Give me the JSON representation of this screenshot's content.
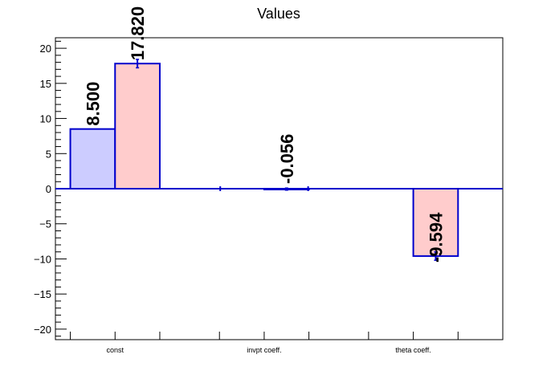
{
  "chart_data": {
    "type": "bar",
    "title": "Values",
    "xlabel": "",
    "ylabel": "",
    "categories": [
      "const",
      "invpt coeff.",
      "theta coeff."
    ],
    "series": [
      {
        "values": [
          8.5,
          0,
          0
        ],
        "color": "#ccccff"
      },
      {
        "values": [
          17.82,
          -0.056,
          -9.594
        ],
        "errors": [
          0.6,
          0.15,
          0.6
        ],
        "color": "#ffcccc"
      }
    ],
    "data_labels": [
      "8.500",
      "17.820",
      "-0.056",
      "-9.594"
    ],
    "ylim": [
      -21.5,
      21.5
    ],
    "yticks": [
      -20,
      -15,
      -10,
      -5,
      0,
      5,
      10,
      15,
      20
    ],
    "ytick_labels": [
      "−20",
      "−15",
      "−10",
      "−5",
      "0",
      "5",
      "10",
      "15",
      "20"
    ],
    "grid": false,
    "legend": "none",
    "edge_color": "#0000cc"
  }
}
